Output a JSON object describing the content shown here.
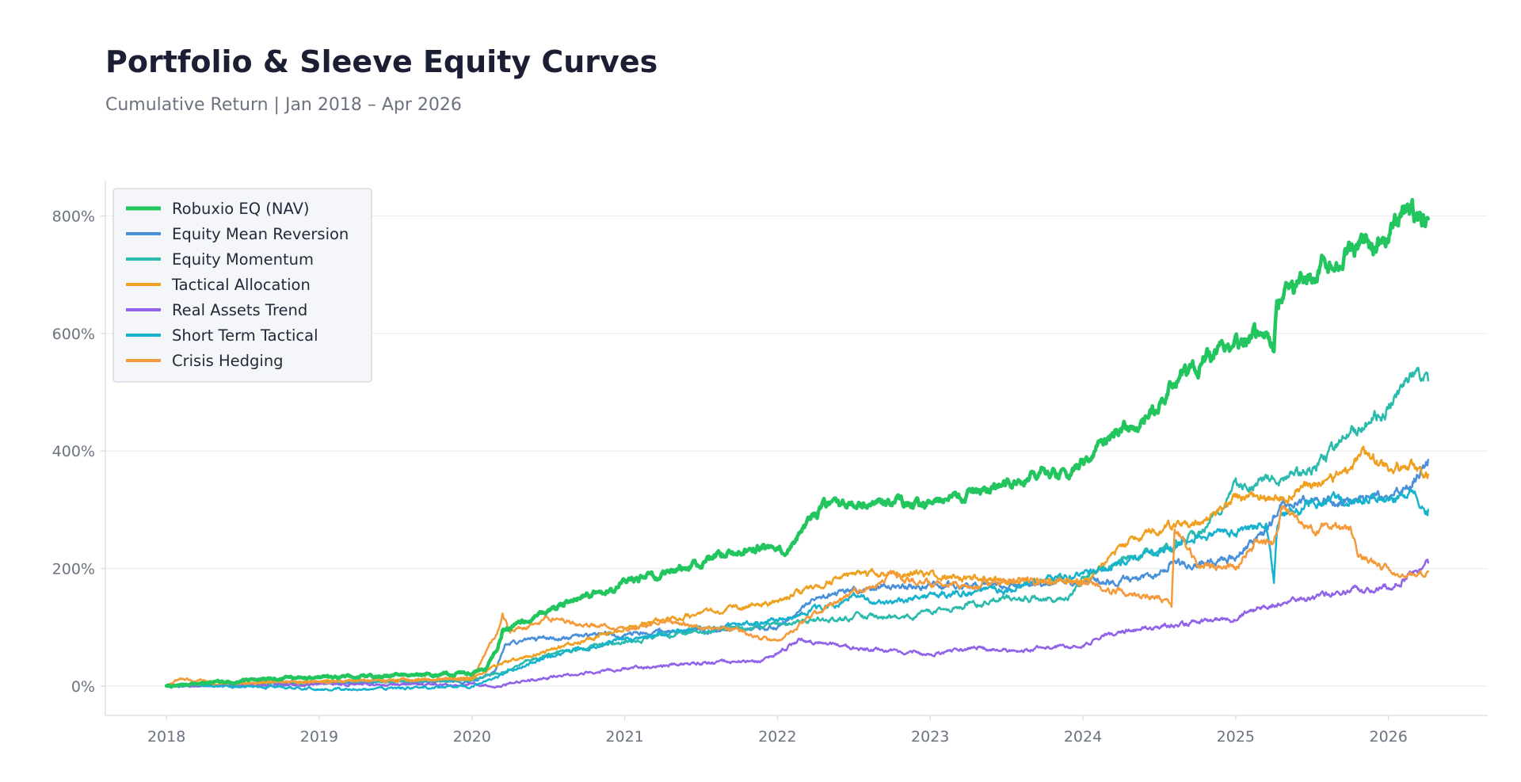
{
  "chart_data": {
    "type": "line",
    "title": "Portfolio & Sleeve Equity Curves",
    "subtitle": "Cumulative Return | Jan 2018 – Apr 2026",
    "xlabel": "",
    "ylabel": "",
    "xlim": [
      2017.6,
      2026.65
    ],
    "ylim": [
      -50,
      860
    ],
    "x_ticks": [
      2018,
      2019,
      2020,
      2021,
      2022,
      2023,
      2024,
      2025,
      2026
    ],
    "x_tick_labels": [
      "2018",
      "2019",
      "2020",
      "2021",
      "2022",
      "2023",
      "2024",
      "2025",
      "2026"
    ],
    "y_ticks": [
      0,
      200,
      400,
      600,
      800
    ],
    "y_tick_labels": [
      "0%",
      "200%",
      "400%",
      "600%",
      "800%"
    ],
    "grid": "horizontal",
    "legend_position": "top-left",
    "series": [
      {
        "name": "Robuxio EQ (NAV)",
        "color": "#22c55e",
        "width": 4.5,
        "x": [
          2018.0,
          2018.5,
          2019.0,
          2019.5,
          2020.0,
          2020.1,
          2020.17,
          2020.2,
          2020.25,
          2020.5,
          2020.75,
          2021.0,
          2021.5,
          2021.75,
          2022.0,
          2022.08,
          2022.2,
          2022.35,
          2022.5,
          2022.75,
          2023.0,
          2023.25,
          2023.5,
          2023.75,
          2023.9,
          2024.0,
          2024.17,
          2024.3,
          2024.5,
          2024.6,
          2024.75,
          2025.0,
          2025.2,
          2025.25,
          2025.27,
          2025.5,
          2025.75,
          2025.9,
          2026.0,
          2026.12,
          2026.2,
          2026.26
        ],
        "y": [
          0,
          10,
          15,
          18,
          22,
          32,
          65,
          95,
          100,
          130,
          155,
          175,
          210,
          230,
          240,
          235,
          280,
          315,
          310,
          315,
          310,
          325,
          340,
          365,
          355,
          385,
          420,
          440,
          470,
          520,
          545,
          590,
          600,
          570,
          660,
          700,
          750,
          745,
          760,
          815,
          800,
          795
        ]
      },
      {
        "name": "Equity Mean Reversion",
        "color": "#4a90d9",
        "width": 2.5,
        "x": [
          2018.0,
          2018.5,
          2019.0,
          2019.5,
          2020.0,
          2020.15,
          2020.22,
          2020.5,
          2021.0,
          2021.5,
          2022.0,
          2022.25,
          2022.5,
          2022.75,
          2023.0,
          2023.5,
          2024.0,
          2024.5,
          2024.58,
          2024.75,
          2025.0,
          2025.2,
          2025.3,
          2025.5,
          2025.75,
          2026.0,
          2026.15,
          2026.26
        ],
        "y": [
          0,
          2,
          5,
          7,
          8,
          25,
          75,
          80,
          90,
          95,
          100,
          150,
          165,
          170,
          170,
          170,
          175,
          185,
          210,
          205,
          220,
          265,
          310,
          320,
          310,
          330,
          345,
          385
        ]
      },
      {
        "name": "Equity Momentum",
        "color": "#2bbbad",
        "width": 2.5,
        "x": [
          2018.0,
          2018.5,
          2019.0,
          2019.5,
          2020.0,
          2020.2,
          2020.5,
          2021.0,
          2021.5,
          2022.0,
          2022.5,
          2022.8,
          2023.0,
          2023.5,
          2023.9,
          2024.0,
          2024.25,
          2024.5,
          2024.75,
          2025.0,
          2025.25,
          2025.5,
          2025.75,
          2026.0,
          2026.15,
          2026.26
        ],
        "y": [
          0,
          3,
          6,
          8,
          10,
          25,
          55,
          75,
          95,
          105,
          120,
          115,
          125,
          150,
          145,
          185,
          215,
          235,
          255,
          340,
          350,
          370,
          430,
          470,
          525,
          520
        ]
      },
      {
        "name": "Tactical Allocation",
        "color": "#f0a020",
        "width": 2.5,
        "x": [
          2018.0,
          2018.5,
          2019.0,
          2019.5,
          2020.0,
          2020.2,
          2020.5,
          2021.0,
          2021.5,
          2022.0,
          2022.25,
          2022.5,
          2023.0,
          2023.5,
          2024.0,
          2024.25,
          2024.5,
          2024.75,
          2024.85,
          2025.0,
          2025.25,
          2025.5,
          2025.75,
          2025.85,
          2026.0,
          2026.15,
          2026.26
        ],
        "y": [
          0,
          5,
          8,
          10,
          12,
          40,
          60,
          100,
          125,
          145,
          170,
          190,
          190,
          180,
          180,
          240,
          270,
          280,
          290,
          320,
          320,
          340,
          370,
          395,
          370,
          375,
          360
        ]
      },
      {
        "name": "Real Assets Trend",
        "color": "#9063e8",
        "width": 2.5,
        "x": [
          2018.0,
          2018.5,
          2019.0,
          2019.5,
          2020.0,
          2020.17,
          2020.5,
          2021.0,
          2021.5,
          2021.85,
          2022.0,
          2022.15,
          2022.5,
          2023.0,
          2023.3,
          2023.5,
          2024.0,
          2024.25,
          2024.5,
          2025.0,
          2025.25,
          2025.5,
          2025.75,
          2026.0,
          2026.15,
          2026.26
        ],
        "y": [
          0,
          1,
          2,
          3,
          3,
          0,
          15,
          30,
          40,
          40,
          55,
          80,
          65,
          55,
          65,
          60,
          70,
          95,
          100,
          115,
          140,
          150,
          165,
          170,
          190,
          210
        ]
      },
      {
        "name": "Short Term Tactical",
        "color": "#17b3ce",
        "width": 2.5,
        "x": [
          2018.0,
          2018.5,
          2019.0,
          2019.5,
          2020.0,
          2020.2,
          2020.5,
          2021.0,
          2021.5,
          2022.0,
          2022.5,
          2022.75,
          2023.0,
          2023.5,
          2024.0,
          2024.5,
          2024.75,
          2025.0,
          2025.2,
          2025.25,
          2025.27,
          2025.3,
          2025.5,
          2025.75,
          2026.0,
          2026.15,
          2026.26
        ],
        "y": [
          0,
          -1,
          -5,
          -5,
          0,
          20,
          50,
          80,
          100,
          110,
          150,
          140,
          155,
          165,
          190,
          230,
          255,
          260,
          280,
          175,
          270,
          290,
          310,
          315,
          320,
          330,
          300
        ]
      },
      {
        "name": "Crisis Hedging",
        "color": "#f59a3a",
        "width": 2.5,
        "x": [
          2018.0,
          2018.1,
          2018.5,
          2019.0,
          2019.5,
          2020.0,
          2020.18,
          2020.2,
          2020.25,
          2020.5,
          2020.75,
          2021.0,
          2021.25,
          2021.5,
          2021.75,
          2022.0,
          2022.25,
          2022.5,
          2022.75,
          2023.0,
          2023.25,
          2023.5,
          2024.0,
          2024.25,
          2024.5,
          2024.58,
          2024.6,
          2024.75,
          2025.0,
          2025.15,
          2025.25,
          2025.3,
          2025.5,
          2025.75,
          2025.8,
          2026.0,
          2026.15,
          2026.26
        ],
        "y": [
          0,
          12,
          5,
          8,
          10,
          12,
          100,
          125,
          90,
          115,
          105,
          95,
          110,
          100,
          95,
          75,
          125,
          160,
          185,
          175,
          170,
          180,
          175,
          160,
          150,
          135,
          270,
          210,
          200,
          250,
          240,
          305,
          270,
          265,
          220,
          200,
          190,
          195
        ]
      }
    ]
  }
}
